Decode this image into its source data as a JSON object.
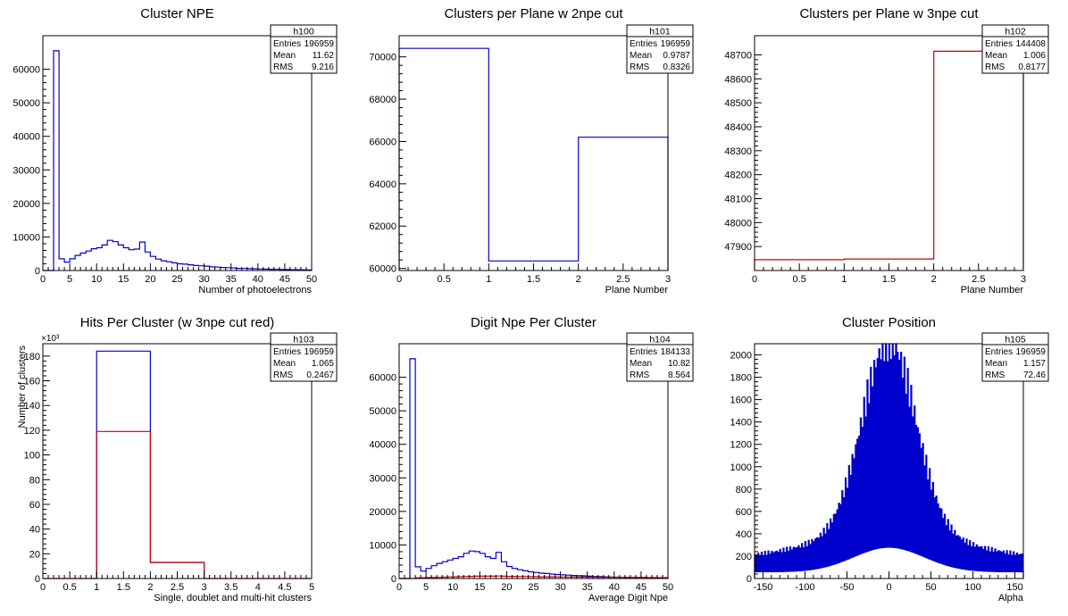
{
  "colors": {
    "blue": "#0000cc",
    "red": "#cc0000",
    "axis": "#000000"
  },
  "chart_data": [
    {
      "id": "h100",
      "type": "histogram",
      "title": "Cluster NPE",
      "xlabel": "Number of photoelectrons",
      "ylabel": "",
      "xlim": [
        0,
        50
      ],
      "ylim": [
        0,
        70000
      ],
      "xticks": [
        0,
        5,
        10,
        15,
        20,
        25,
        30,
        35,
        40,
        45,
        50
      ],
      "yticks": [
        0,
        10000,
        20000,
        30000,
        40000,
        50000,
        60000
      ],
      "stats": {
        "name": "h100",
        "rows": [
          [
            "Entries",
            "196959"
          ],
          [
            "Mean",
            "11.62"
          ],
          [
            "RMS",
            "9.216"
          ]
        ]
      },
      "series": [
        {
          "color": "blue",
          "edges": [
            0,
            1,
            2,
            3,
            4,
            5,
            6,
            7,
            8,
            9,
            10,
            11,
            12,
            13,
            14,
            15,
            16,
            17,
            18,
            19,
            20,
            21,
            22,
            23,
            24,
            25,
            26,
            27,
            28,
            29,
            30,
            31,
            32,
            33,
            34,
            35,
            36,
            37,
            38,
            39,
            40,
            41,
            42,
            43,
            44,
            45,
            46,
            47,
            48,
            49,
            50
          ],
          "values": [
            0,
            0,
            65500,
            3500,
            2500,
            3500,
            4500,
            5200,
            5800,
            6500,
            6800,
            7600,
            9000,
            8600,
            7600,
            6800,
            6200,
            6400,
            8500,
            5500,
            4200,
            3400,
            2900,
            2600,
            2300,
            2000,
            1900,
            1700,
            1500,
            1400,
            1300,
            1100,
            1000,
            900,
            850,
            750,
            650,
            600,
            550,
            500,
            450,
            400,
            380,
            350,
            300,
            280,
            250,
            230,
            200,
            180
          ]
        }
      ]
    },
    {
      "id": "h101",
      "type": "histogram",
      "title": "Clusters per Plane w 2npe cut",
      "xlabel": "Plane Number",
      "ylabel": "",
      "xlim": [
        0,
        3
      ],
      "ylim": [
        59900,
        71000
      ],
      "xticks": [
        0,
        0.5,
        1,
        1.5,
        2,
        2.5,
        3
      ],
      "yticks": [
        60000,
        62000,
        64000,
        66000,
        68000,
        70000
      ],
      "stats": {
        "name": "h101",
        "rows": [
          [
            "Entries",
            "196959"
          ],
          [
            "Mean",
            "0.9787"
          ],
          [
            "RMS",
            "0.8326"
          ]
        ]
      },
      "series": [
        {
          "color": "blue",
          "edges": [
            0,
            1,
            2,
            3
          ],
          "values": [
            70400,
            60350,
            66200
          ]
        }
      ]
    },
    {
      "id": "h102",
      "type": "histogram",
      "title": "Clusters per Plane w 3npe cut",
      "xlabel": "Plane Number",
      "ylabel": "",
      "xlim": [
        0,
        3
      ],
      "ylim": [
        47800,
        48780
      ],
      "xticks": [
        0,
        0.5,
        1,
        1.5,
        2,
        2.5,
        3
      ],
      "yticks": [
        47900,
        48000,
        48100,
        48200,
        48300,
        48400,
        48500,
        48600,
        48700
      ],
      "stats": {
        "name": "h102",
        "rows": [
          [
            "Entries",
            "144408"
          ],
          [
            "Mean",
            "1.006"
          ],
          [
            "RMS",
            "0.8177"
          ]
        ]
      },
      "series": [
        {
          "color": "red",
          "edges": [
            0,
            1,
            2,
            3
          ],
          "values": [
            47845,
            47848,
            48715
          ]
        }
      ]
    },
    {
      "id": "h103",
      "type": "histogram",
      "title": "Hits Per Cluster (w 3npe cut red)",
      "xlabel": "Single, doublet and multi-hit clusters",
      "ylabel": "Number of clusters",
      "multiplier": "×10³",
      "xlim": [
        0,
        5
      ],
      "ylim": [
        0,
        190000
      ],
      "xticks": [
        0,
        0.5,
        1,
        1.5,
        2,
        2.5,
        3,
        3.5,
        4,
        4.5,
        5
      ],
      "yticks": [
        0,
        20000,
        40000,
        60000,
        80000,
        100000,
        120000,
        140000,
        160000,
        180000
      ],
      "ytick_labels": [
        "0",
        "20",
        "40",
        "60",
        "80",
        "100",
        "120",
        "140",
        "160",
        "180"
      ],
      "stats": {
        "name": "h103",
        "rows": [
          [
            "Entries",
            "196959"
          ],
          [
            "Mean",
            "1.065"
          ],
          [
            "RMS",
            "0.2467"
          ]
        ]
      },
      "series": [
        {
          "color": "blue",
          "edges": [
            1,
            2,
            3
          ],
          "values": [
            184000,
            13000
          ]
        },
        {
          "color": "red",
          "edges": [
            0,
            1,
            2,
            3,
            5
          ],
          "values": [
            0,
            119000,
            13000,
            0
          ]
        }
      ]
    },
    {
      "id": "h104",
      "type": "histogram",
      "title": "Digit Npe Per Cluster",
      "xlabel": "Average Digit Npe",
      "ylabel": "",
      "xlim": [
        0,
        50
      ],
      "ylim": [
        0,
        70000
      ],
      "xticks": [
        0,
        5,
        10,
        15,
        20,
        25,
        30,
        35,
        40,
        45,
        50
      ],
      "yticks": [
        0,
        10000,
        20000,
        30000,
        40000,
        50000,
        60000
      ],
      "stats": {
        "name": "h104",
        "rows": [
          [
            "Entries",
            "184133"
          ],
          [
            "Mean",
            "10.82"
          ],
          [
            "RMS",
            "8.564"
          ]
        ]
      },
      "series": [
        {
          "color": "blue",
          "edges": [
            0,
            1,
            2,
            3,
            4,
            5,
            6,
            7,
            8,
            9,
            10,
            11,
            12,
            13,
            14,
            15,
            16,
            17,
            18,
            19,
            20,
            21,
            22,
            23,
            24,
            25,
            26,
            27,
            28,
            29,
            30,
            31,
            32,
            33,
            34,
            35,
            36,
            37,
            38,
            39,
            40,
            41,
            42,
            43,
            44,
            45,
            46,
            47,
            48,
            49,
            50
          ],
          "values": [
            0,
            0,
            65500,
            3500,
            2200,
            3000,
            3800,
            4500,
            5000,
            5500,
            6000,
            6500,
            7500,
            8200,
            8000,
            7500,
            6500,
            6000,
            7800,
            5000,
            3600,
            3000,
            2600,
            2300,
            2000,
            1800,
            1600,
            1500,
            1300,
            1200,
            1100,
            1000,
            900,
            850,
            800,
            700,
            600,
            550,
            500,
            450,
            400,
            380,
            350,
            320,
            300,
            280,
            250,
            230,
            200,
            180
          ]
        },
        {
          "color": "red",
          "edges": [
            0,
            1,
            2,
            3,
            4,
            5,
            6,
            7,
            8,
            9,
            10,
            11,
            12,
            13,
            14,
            15,
            16,
            17,
            18,
            19,
            20,
            21,
            22,
            23,
            24,
            25,
            26,
            27,
            28,
            29,
            30,
            31,
            32,
            33,
            34,
            35,
            36,
            37,
            38,
            39,
            40,
            41,
            42,
            43,
            44,
            45,
            46,
            47,
            48,
            49,
            50
          ],
          "values": [
            0,
            0,
            0,
            200,
            250,
            300,
            300,
            350,
            400,
            450,
            500,
            550,
            600,
            650,
            700,
            700,
            700,
            700,
            750,
            700,
            650,
            650,
            600,
            600,
            550,
            550,
            500,
            500,
            500,
            480,
            460,
            450,
            450,
            430,
            420,
            400,
            400,
            380,
            370,
            360,
            350,
            340,
            330,
            320,
            300,
            300,
            290,
            280,
            270,
            260
          ]
        }
      ]
    },
    {
      "id": "h105",
      "type": "histogram",
      "title": "Cluster Position",
      "xlabel": "Alpha",
      "ylabel": "",
      "xlim": [
        -160,
        160
      ],
      "ylim": [
        0,
        2100
      ],
      "xticks": [
        -150,
        -100,
        -50,
        0,
        50,
        100,
        150
      ],
      "yticks": [
        0,
        200,
        400,
        600,
        800,
        1000,
        1200,
        1400,
        1600,
        1800,
        2000
      ],
      "stats": {
        "name": "h105",
        "rows": [
          [
            "Entries",
            "196959"
          ],
          [
            "Mean",
            "1.157"
          ],
          [
            "RMS",
            "72.46"
          ]
        ]
      },
      "series": [
        {
          "color": "blue",
          "comb": true,
          "xmin": -160,
          "xmax": 160,
          "nbins": 320
        }
      ]
    }
  ]
}
